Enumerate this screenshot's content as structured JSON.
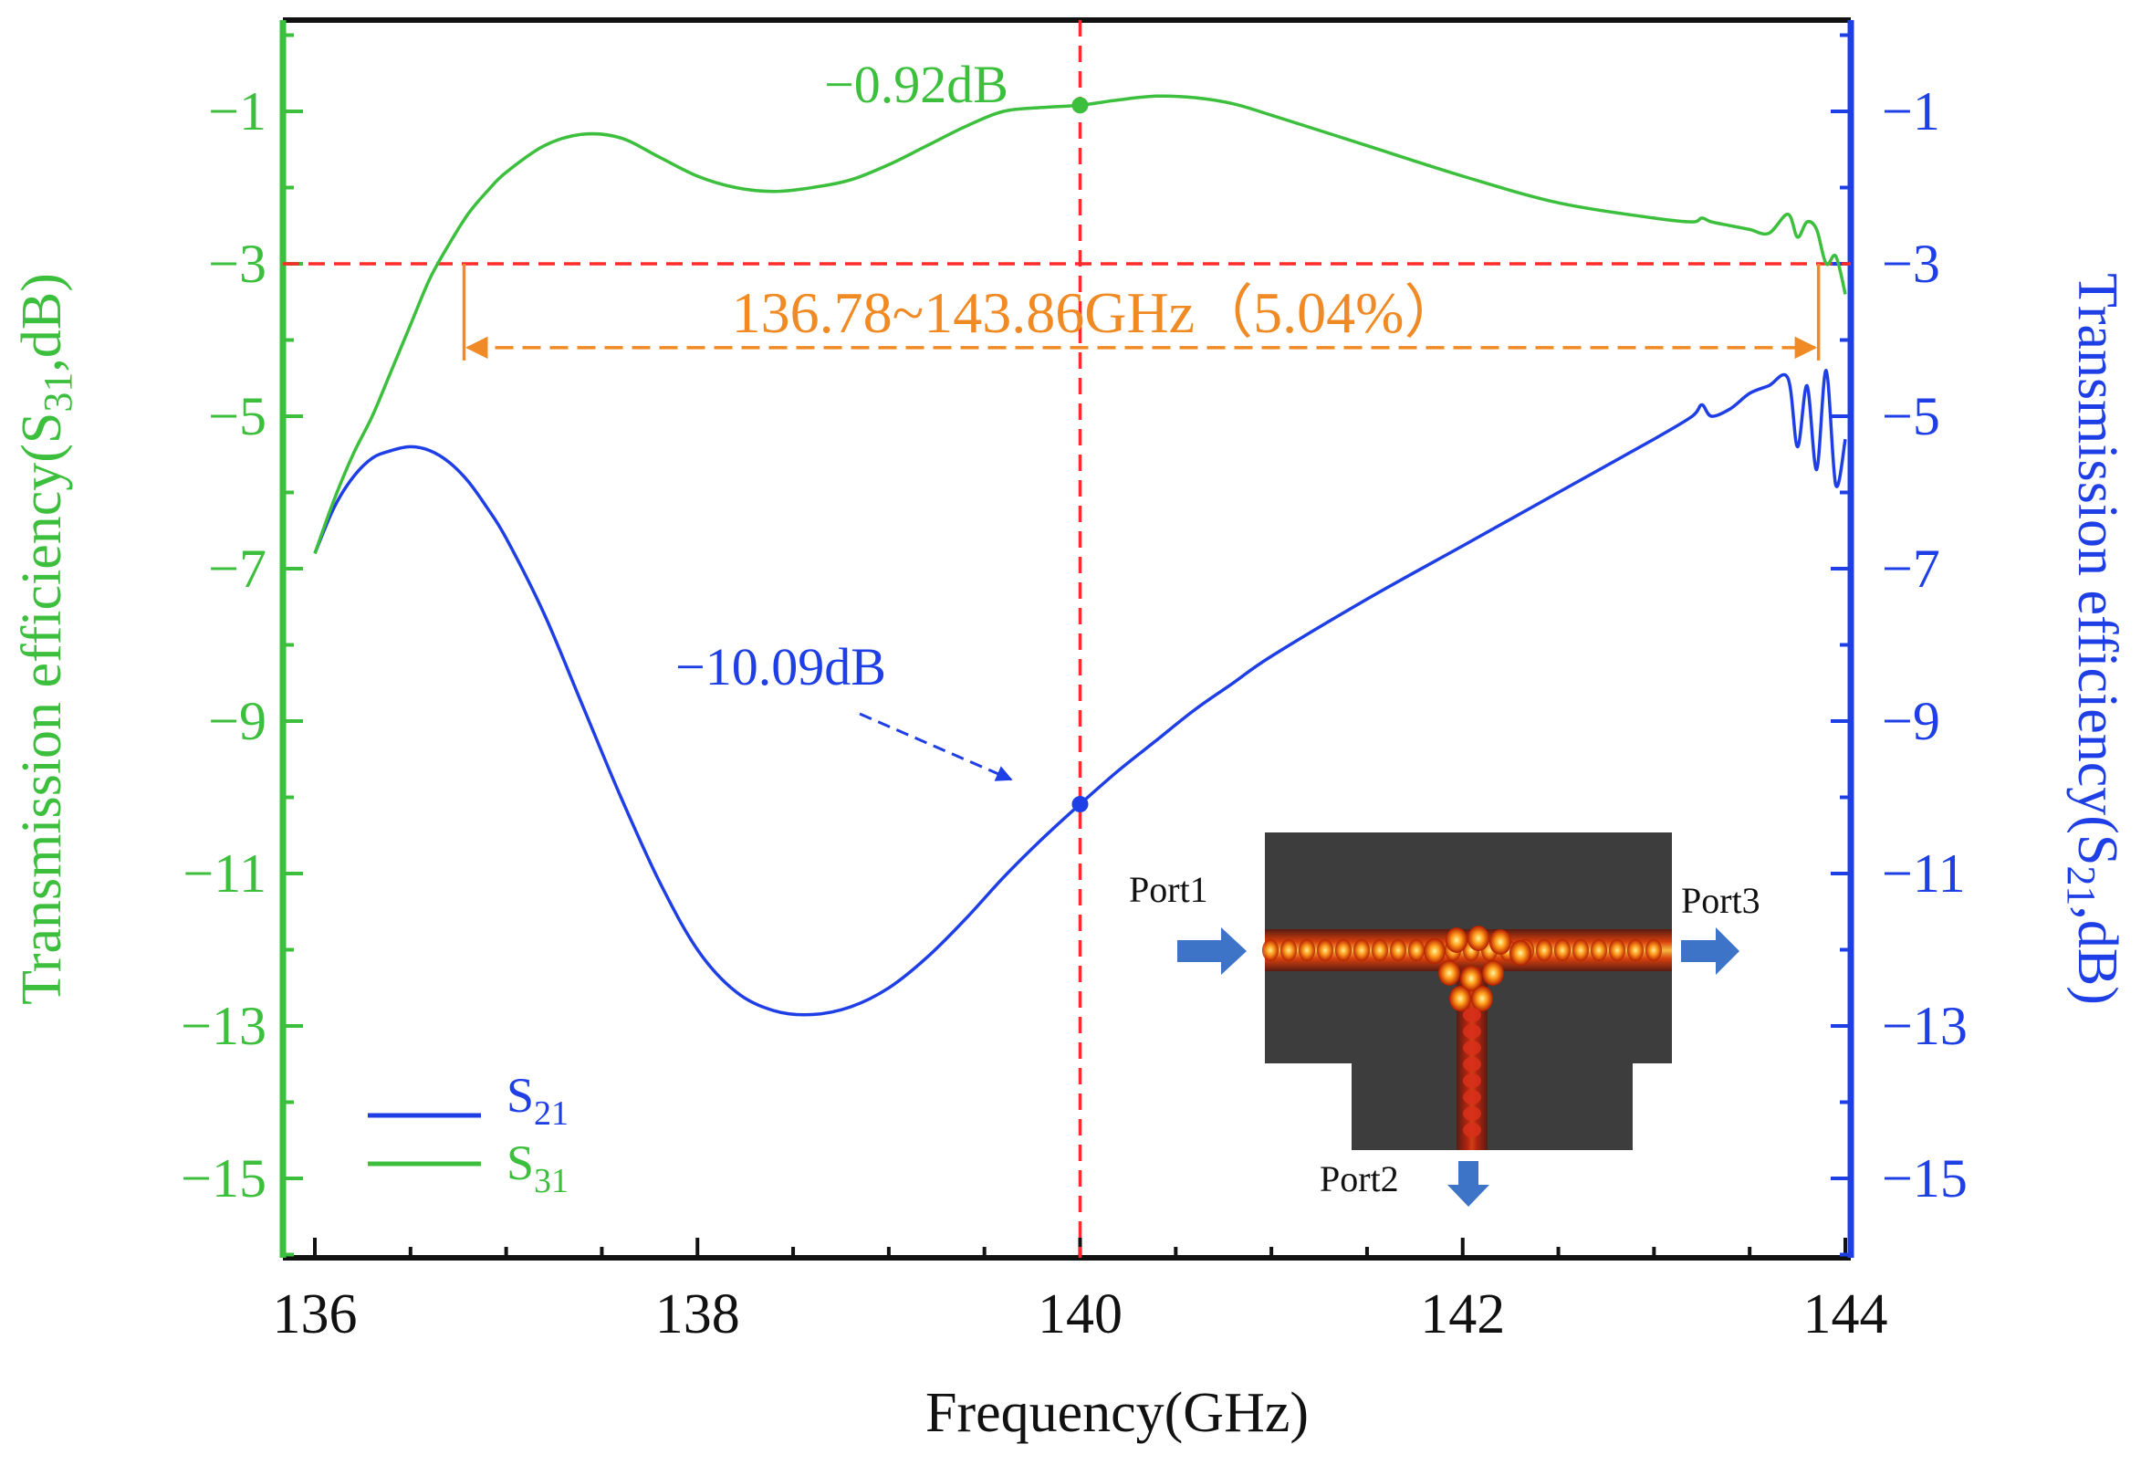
{
  "chart_data": {
    "type": "line",
    "xlabel": "Frequency(GHz)",
    "ylabel_left": {
      "prefix": "Transmission efficiency(S",
      "sub": "31",
      "suffix": ",dB)"
    },
    "ylabel_right": {
      "prefix": "Transmission efficiency(S",
      "sub": "21",
      "suffix": ",dB)"
    },
    "xlim": [
      136,
      144
    ],
    "ylim": [
      -16,
      0.2
    ],
    "x_ticks": [
      136,
      138,
      140,
      142,
      144
    ],
    "y_ticks": [
      -1,
      -3,
      -5,
      -7,
      -9,
      -11,
      -13,
      -15
    ],
    "y_tick_labels": [
      "−1",
      "−3",
      "−5",
      "−7",
      "−9",
      "−11",
      "−13",
      "−15"
    ],
    "colors": {
      "S21": "#1f3fe6",
      "S31": "#3cbf3c",
      "marker_line": "#ff2a2a",
      "bandwidth": "#f08a24",
      "axis_left": "#3cbf3c",
      "axis_right": "#1f3fe6"
    },
    "series": [
      {
        "name": "S21",
        "sub": "21",
        "x": [
          136.0,
          136.1,
          136.2,
          136.3,
          136.4,
          136.5,
          136.6,
          136.7,
          136.8,
          136.9,
          137.0,
          137.2,
          137.4,
          137.6,
          137.8,
          138.0,
          138.2,
          138.4,
          138.6,
          138.8,
          139.0,
          139.2,
          139.4,
          139.6,
          139.8,
          140.0,
          140.2,
          140.4,
          140.6,
          140.8,
          141.0,
          141.5,
          142.0,
          142.5,
          143.0,
          143.2,
          143.25,
          143.3,
          143.4,
          143.5,
          143.6,
          143.7,
          143.75,
          143.8,
          143.85,
          143.9,
          143.95,
          144.0
        ],
        "values": [
          -6.8,
          -6.2,
          -5.8,
          -5.55,
          -5.45,
          -5.4,
          -5.45,
          -5.6,
          -5.85,
          -6.2,
          -6.6,
          -7.6,
          -8.8,
          -10.0,
          -11.1,
          -12.0,
          -12.55,
          -12.8,
          -12.85,
          -12.75,
          -12.5,
          -12.1,
          -11.6,
          -11.05,
          -10.55,
          -10.09,
          -9.65,
          -9.25,
          -8.85,
          -8.5,
          -8.15,
          -7.4,
          -6.7,
          -6.0,
          -5.3,
          -5.0,
          -4.85,
          -5.0,
          -4.9,
          -4.7,
          -4.6,
          -4.5,
          -5.4,
          -4.6,
          -5.7,
          -4.4,
          -5.9,
          -5.3
        ]
      },
      {
        "name": "S31",
        "sub": "31",
        "x": [
          136.0,
          136.1,
          136.2,
          136.3,
          136.4,
          136.5,
          136.6,
          136.7,
          136.8,
          136.9,
          137.0,
          137.2,
          137.4,
          137.6,
          137.8,
          138.0,
          138.2,
          138.4,
          138.6,
          138.8,
          139.0,
          139.2,
          139.4,
          139.6,
          139.8,
          140.0,
          140.2,
          140.4,
          140.6,
          140.8,
          141.0,
          141.5,
          142.0,
          142.5,
          143.0,
          143.2,
          143.25,
          143.3,
          143.4,
          143.5,
          143.6,
          143.7,
          143.75,
          143.8,
          143.85,
          143.9,
          143.95,
          144.0
        ],
        "values": [
          -6.8,
          -6.1,
          -5.5,
          -5.0,
          -4.4,
          -3.8,
          -3.2,
          -2.75,
          -2.35,
          -2.05,
          -1.8,
          -1.45,
          -1.3,
          -1.35,
          -1.6,
          -1.85,
          -2.0,
          -2.05,
          -2.0,
          -1.9,
          -1.7,
          -1.45,
          -1.2,
          -1.0,
          -0.95,
          -0.92,
          -0.85,
          -0.8,
          -0.82,
          -0.9,
          -1.05,
          -1.45,
          -1.85,
          -2.2,
          -2.4,
          -2.45,
          -2.4,
          -2.45,
          -2.5,
          -2.55,
          -2.6,
          -2.35,
          -2.65,
          -2.45,
          -2.55,
          -3.0,
          -2.9,
          -3.4
        ]
      }
    ],
    "annotations": {
      "vline_x": 140,
      "hline_y": -3,
      "bandwidth": {
        "x_start": 136.78,
        "x_end": 143.86,
        "y": -4.1,
        "label": "136.78~143.86GHz（5.04%）"
      },
      "s31_point": {
        "x": 140,
        "y": -0.92,
        "label": "−0.92dB"
      },
      "s21_point": {
        "x": 140,
        "y": -10.09,
        "label": "−10.09dB"
      }
    },
    "inset": {
      "port1": "Port1",
      "port2": "Port2",
      "port3": "Port3"
    },
    "legend": {
      "position": "bottom-left"
    },
    "grid": false
  }
}
